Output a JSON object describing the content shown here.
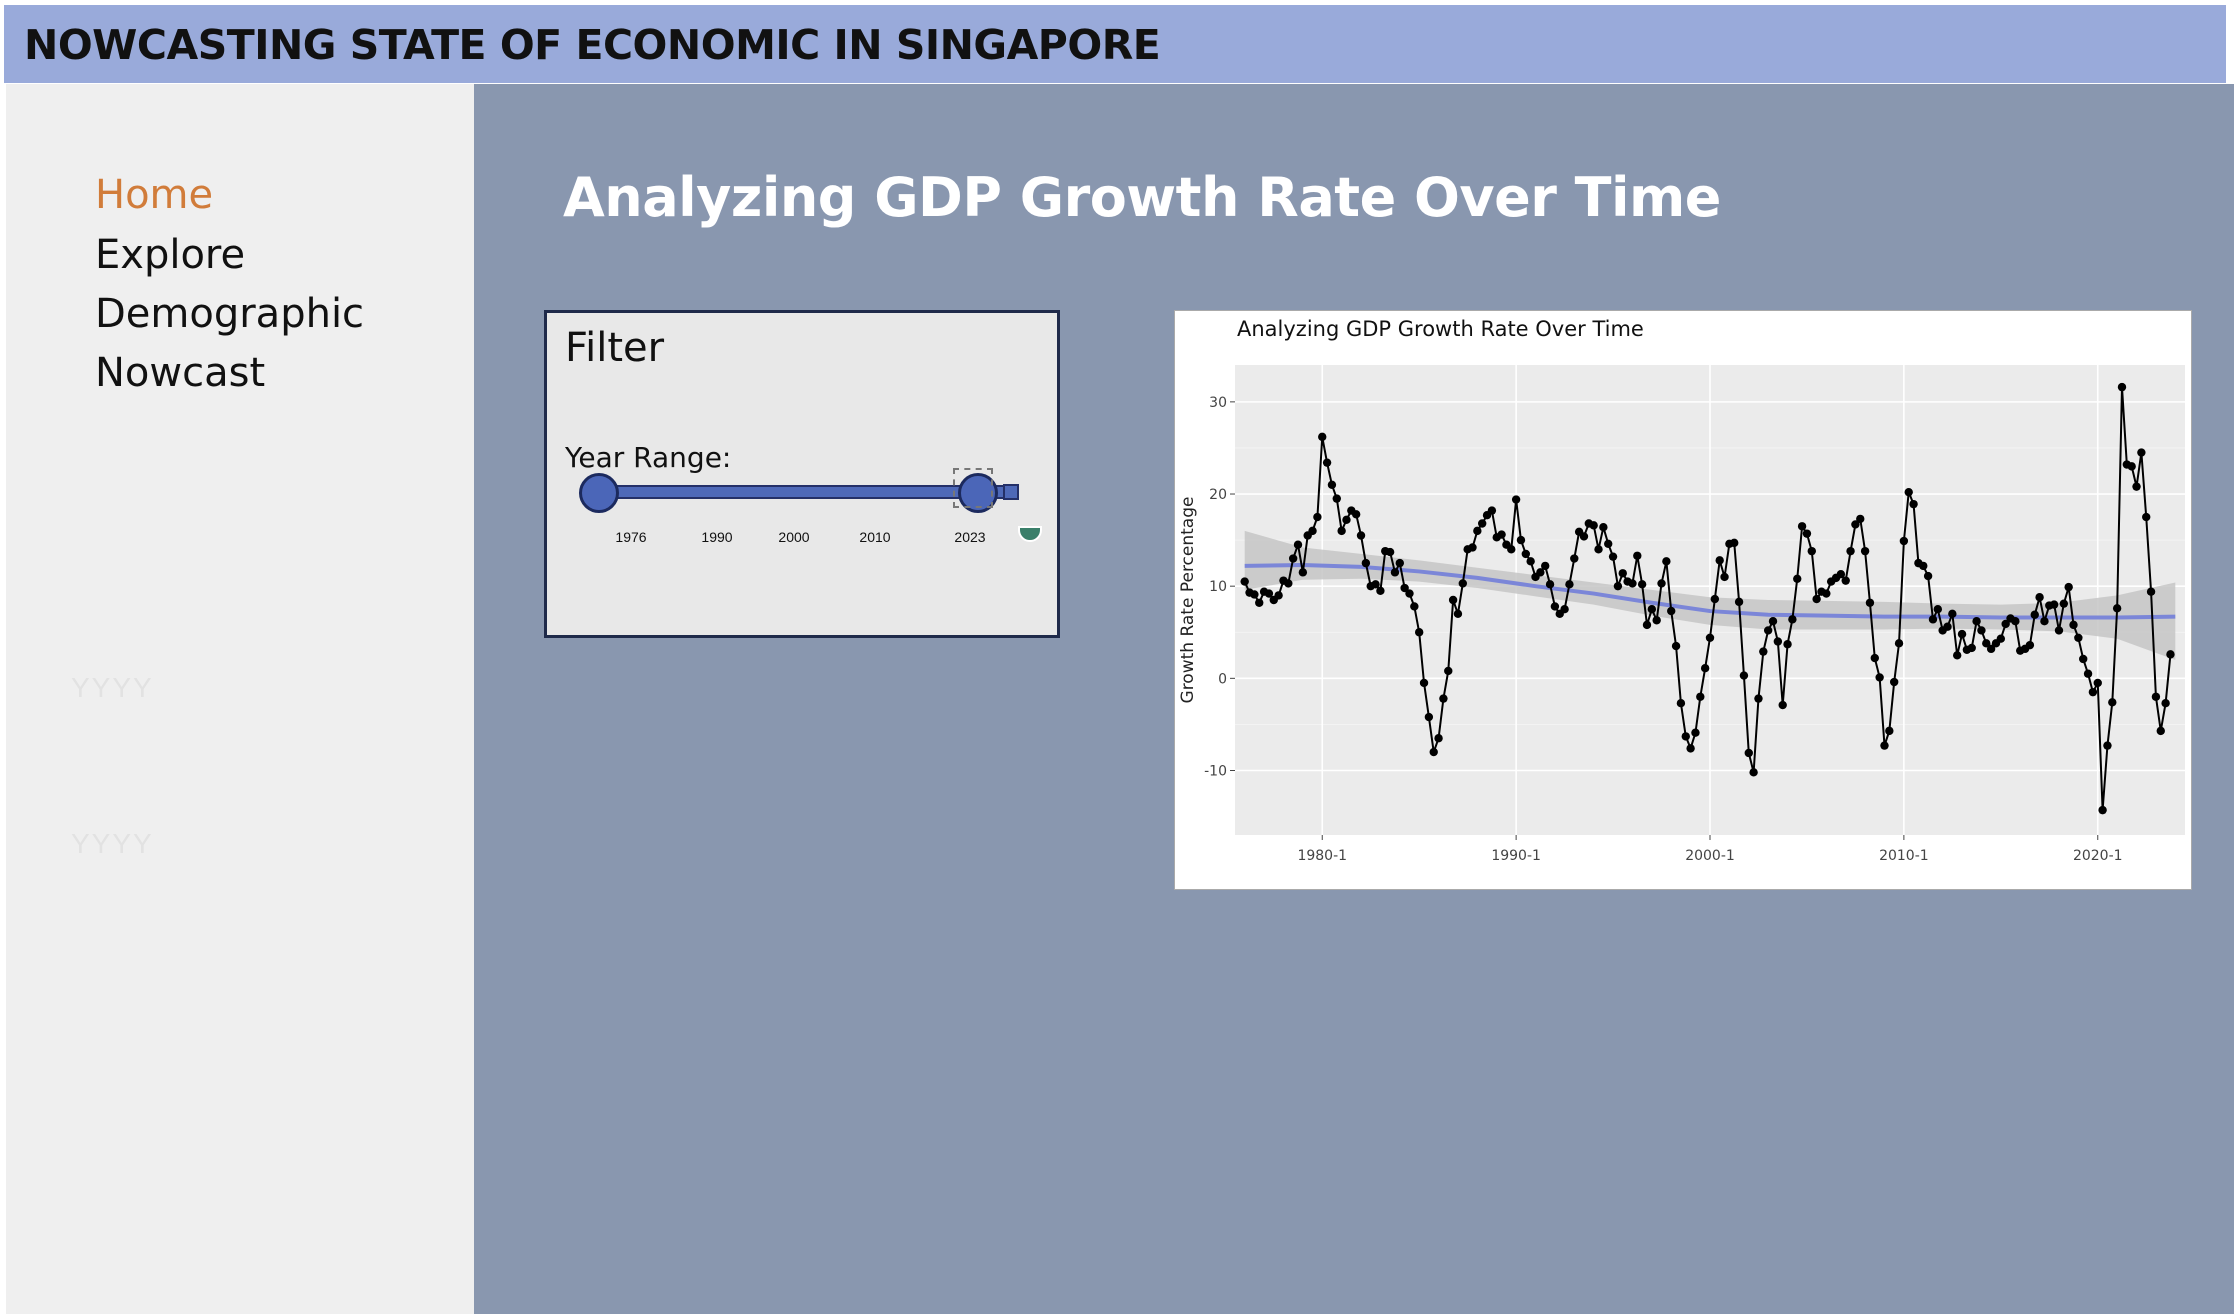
{
  "header": {
    "title": "NOWCASTING STATE OF ECONOMIC IN SINGAPORE"
  },
  "sidebar": {
    "items": [
      {
        "label": "Home",
        "active": true
      },
      {
        "label": "Explore",
        "active": false
      },
      {
        "label": "Demographic",
        "active": false
      },
      {
        "label": "Nowcast",
        "active": false
      }
    ],
    "placeholders": [
      "YYYY",
      "YYYY"
    ]
  },
  "main": {
    "title": "Analyzing GDP Growth Rate Over Time"
  },
  "filter": {
    "title": "Filter",
    "year_range_label": "Year Range:",
    "slider_min": 1976,
    "slider_max": 2023,
    "selected_min": 1976,
    "selected_max": 2023,
    "ticks": [
      "1976",
      "1990",
      "2000",
      "2010",
      "2023"
    ]
  },
  "colors": {
    "header_bg": "#99aada",
    "main_bg": "#8997af",
    "active_nav": "#d17c3a",
    "slider": "#4e69b8",
    "trend_line": "#7b86d8"
  },
  "chart_data": {
    "type": "line",
    "title": "Analyzing GDP Growth Rate Over Time",
    "xlabel": "",
    "ylabel": "Growth Rate Percentage",
    "x_ticks": [
      "1980-1",
      "1990-1",
      "2000-1",
      "2010-1",
      "2020-1"
    ],
    "y_ticks": [
      "30",
      "20",
      "10",
      "0",
      "-10"
    ],
    "xlim": [
      1975.5,
      2024.5
    ],
    "ylim": [
      -17,
      34
    ],
    "grid": true,
    "series": [
      {
        "type": "line+points",
        "x": [
          1976.0,
          1976.25,
          1976.5,
          1976.75,
          1977.0,
          1977.25,
          1977.5,
          1977.75,
          1978.0,
          1978.25,
          1978.5,
          1978.75,
          1979.0,
          1979.25,
          1979.5,
          1979.75,
          1980.0,
          1980.25,
          1980.5,
          1980.75,
          1981.0,
          1981.25,
          1981.5,
          1981.75,
          1982.0,
          1982.25,
          1982.5,
          1982.75,
          1983.0,
          1983.25,
          1983.5,
          1983.75,
          1984.0,
          1984.25,
          1984.5,
          1984.75,
          1985.0,
          1985.25,
          1985.5,
          1985.75,
          1986.0,
          1986.25,
          1986.5,
          1986.75,
          1987.0,
          1987.25,
          1987.5,
          1987.75,
          1988.0,
          1988.25,
          1988.5,
          1988.75,
          1989.0,
          1989.25,
          1989.5,
          1989.75,
          1990.0,
          1990.25,
          1990.5,
          1990.75,
          1991.0,
          1991.25,
          1991.5,
          1991.75,
          1992.0,
          1992.25,
          1992.5,
          1992.75,
          1993.0,
          1993.25,
          1993.5,
          1993.75,
          1994.0,
          1994.25,
          1994.5,
          1994.75,
          1995.0,
          1995.25,
          1995.5,
          1995.75,
          1996.0,
          1996.25,
          1996.5,
          1996.75,
          1997.0,
          1997.25,
          1997.5,
          1997.75,
          1998.0,
          1998.25,
          1998.5,
          1998.75,
          1999.0,
          1999.25,
          1999.5,
          1999.75,
          2000.0,
          2000.25,
          2000.5,
          2000.75,
          2001.0,
          2001.25,
          2001.5,
          2001.75,
          2002.0,
          2002.25,
          2002.5,
          2002.75,
          2003.0,
          2003.25,
          2003.5,
          2003.75,
          2004.0,
          2004.25,
          2004.5,
          2004.75,
          2005.0,
          2005.25,
          2005.5,
          2005.75,
          2006.0,
          2006.25,
          2006.5,
          2006.75,
          2007.0,
          2007.25,
          2007.5,
          2007.75,
          2008.0,
          2008.25,
          2008.5,
          2008.75,
          2009.0,
          2009.25,
          2009.5,
          2009.75,
          2010.0,
          2010.25,
          2010.5,
          2010.75,
          2011.0,
          2011.25,
          2011.5,
          2011.75,
          2012.0,
          2012.25,
          2012.5,
          2012.75,
          2013.0,
          2013.25,
          2013.5,
          2013.75,
          2014.0,
          2014.25,
          2014.5,
          2014.75,
          2015.0,
          2015.25,
          2015.5,
          2015.75,
          2016.0,
          2016.25,
          2016.5,
          2016.75,
          2017.0,
          2017.25,
          2017.5,
          2017.75,
          2018.0,
          2018.25,
          2018.5,
          2018.75,
          2019.0,
          2019.25,
          2019.5,
          2019.75,
          2020.0,
          2020.25,
          2020.5,
          2020.75,
          2021.0,
          2021.25,
          2021.5,
          2021.75,
          2022.0,
          2022.25,
          2022.5,
          2022.75,
          2023.0,
          2023.25,
          2023.5,
          2023.75
        ],
        "values": [
          10.5,
          9.3,
          9.1,
          8.2,
          9.4,
          9.2,
          8.5,
          9.0,
          10.6,
          10.3,
          13.0,
          14.5,
          11.5,
          15.5,
          16.0,
          17.5,
          26.2,
          23.4,
          21.0,
          19.5,
          16.0,
          17.2,
          18.2,
          17.8,
          15.5,
          12.5,
          10.0,
          10.2,
          9.5,
          13.8,
          13.7,
          11.5,
          12.5,
          9.8,
          9.2,
          7.8,
          5.0,
          -0.5,
          -4.2,
          -8.0,
          -6.5,
          -2.2,
          0.8,
          8.5,
          7.0,
          10.3,
          14.0,
          14.2,
          16.0,
          16.8,
          17.7,
          18.2,
          15.3,
          15.6,
          14.5,
          14.0,
          19.4,
          15.0,
          13.5,
          12.7,
          11.0,
          11.5,
          12.2,
          10.2,
          7.8,
          7.0,
          7.5,
          10.2,
          13.0,
          15.9,
          15.4,
          16.8,
          16.6,
          14.0,
          16.4,
          14.6,
          13.2,
          10.0,
          11.4,
          10.5,
          10.3,
          13.3,
          10.2,
          5.8,
          7.5,
          6.3,
          10.3,
          12.7,
          7.3,
          3.5,
          -2.7,
          -6.3,
          -7.6,
          -5.9,
          -2.0,
          1.1,
          4.4,
          8.6,
          12.8,
          11.0,
          14.6,
          14.7,
          8.3,
          0.3,
          -8.1,
          -10.2,
          -2.2,
          2.9,
          5.2,
          6.2,
          4.0,
          -2.9,
          3.7,
          6.4,
          10.8,
          16.5,
          15.7,
          13.8,
          8.6,
          9.4,
          9.2,
          10.5,
          10.9,
          11.3,
          10.6,
          13.8,
          16.7,
          17.3,
          13.8,
          8.2,
          2.2,
          0.1,
          -7.3,
          -5.7,
          -0.4,
          3.8,
          14.9,
          20.2,
          18.9,
          12.5,
          12.2,
          11.1,
          6.4,
          7.5,
          5.2,
          5.6,
          7.0,
          2.5,
          4.8,
          3.1,
          3.3,
          6.2,
          5.2,
          3.8,
          3.2,
          3.8,
          4.3,
          5.9,
          6.5,
          6.2,
          3.0,
          3.2,
          3.6,
          6.9,
          8.8,
          6.2,
          7.9,
          8.0,
          5.2,
          8.1,
          9.9,
          5.8,
          4.4,
          2.1,
          0.5,
          -1.5,
          -0.5,
          -14.3,
          -7.3,
          -2.6,
          7.6,
          31.6,
          23.2,
          23.0,
          20.8,
          24.5,
          17.5,
          9.4,
          -2.0,
          -5.7,
          -2.7,
          2.6
        ]
      },
      {
        "name": "smooth",
        "type": "trend-with-band",
        "x": [
          1976,
          1979,
          1982,
          1985,
          1988,
          1991,
          1994,
          1997,
          2000,
          2003,
          2006,
          2009,
          2012,
          2015,
          2018,
          2021,
          2024
        ],
        "values": [
          12.2,
          12.3,
          12.1,
          11.6,
          10.9,
          10.0,
          9.2,
          8.2,
          7.3,
          6.9,
          6.8,
          6.7,
          6.7,
          6.6,
          6.6,
          6.6,
          6.7
        ],
        "band_lower": [
          9.6,
          10.7,
          10.8,
          10.5,
          9.8,
          8.9,
          8.0,
          6.8,
          5.8,
          5.3,
          5.3,
          5.3,
          5.4,
          5.3,
          5.1,
          4.3,
          2.0
        ],
        "band_upper": [
          16.0,
          14.2,
          13.5,
          12.8,
          12.0,
          11.2,
          10.4,
          9.6,
          8.8,
          8.5,
          8.4,
          8.3,
          8.1,
          8.0,
          8.2,
          9.0,
          10.4
        ]
      }
    ]
  }
}
